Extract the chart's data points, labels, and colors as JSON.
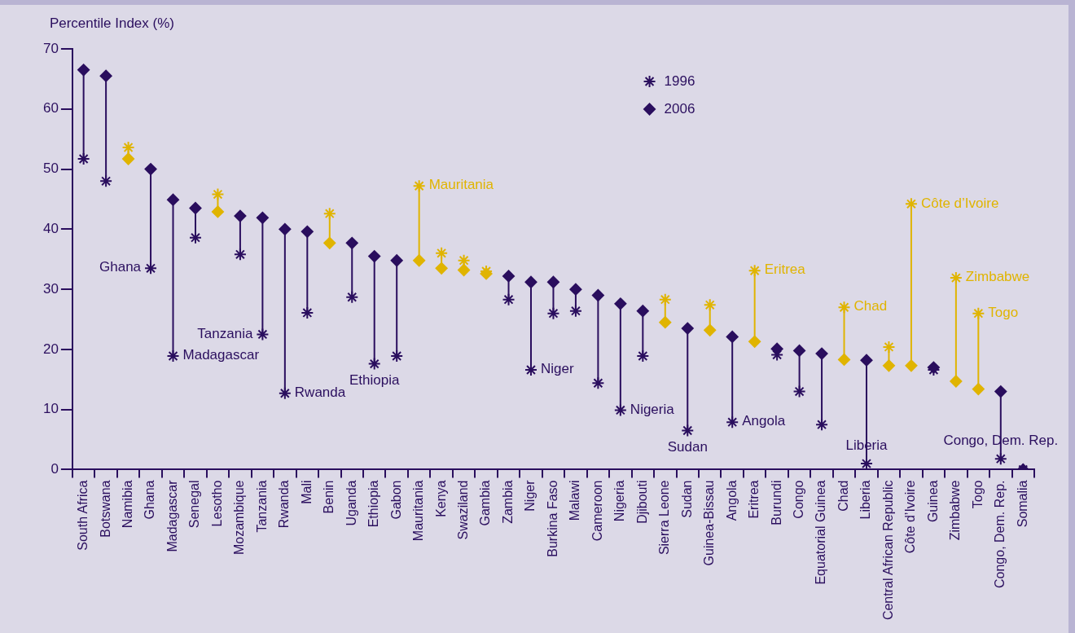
{
  "chart_data": {
    "type": "scatter",
    "ylabel": "Percentile Index (%)",
    "categories": [
      "South Africa",
      "Botswana",
      "Namibia",
      "Ghana",
      "Madagascar",
      "Senegal",
      "Lesotho",
      "Mozambique",
      "Tanzania",
      "Rwanda",
      "Mali",
      "Benin",
      "Uganda",
      "Ethiopia",
      "Gabon",
      "Mauritania",
      "Kenya",
      "Swaziland",
      "Gambia",
      "Zambia",
      "Niger",
      "Burkina Faso",
      "Malawi",
      "Cameroon",
      "Nigeria",
      "Djibouti",
      "Sierra Leone",
      "Sudan",
      "Guinea-Bissau",
      "Angola",
      "Eritrea",
      "Burundi",
      "Congo",
      "Equatorial Guinea",
      "Chad",
      "Liberia",
      "Central African Republic",
      "Côte d’Ivoire",
      "Guinea",
      "Zimbabwe",
      "Togo",
      "Congo, Dem. Rep.",
      "Somalia"
    ],
    "series": [
      {
        "name": "1996",
        "marker": "cross",
        "color": "#2a0e5e",
        "colors": [
          "#2a0e5e",
          "#2a0e5e",
          "#e0b400",
          "#2a0e5e",
          "#2a0e5e",
          "#2a0e5e",
          "#e0b400",
          "#2a0e5e",
          "#2a0e5e",
          "#2a0e5e",
          "#2a0e5e",
          "#e0b400",
          "#2a0e5e",
          "#2a0e5e",
          "#2a0e5e",
          "#e0b400",
          "#e0b400",
          "#e0b400",
          "#e0b400",
          "#2a0e5e",
          "#2a0e5e",
          "#2a0e5e",
          "#2a0e5e",
          "#2a0e5e",
          "#2a0e5e",
          "#2a0e5e",
          "#e0b400",
          "#2a0e5e",
          "#e0b400",
          "#2a0e5e",
          "#e0b400",
          "#2a0e5e",
          "#2a0e5e",
          "#2a0e5e",
          "#e0b400",
          "#2a0e5e",
          "#e0b400",
          "#e0b400",
          "#2a0e5e",
          "#e0b400",
          "#e0b400",
          "#2a0e5e",
          "#2a0e5e"
        ],
        "values": [
          51.7,
          48,
          53.6,
          33.5,
          18.9,
          38.6,
          45.8,
          35.8,
          22.5,
          12.7,
          26.1,
          42.6,
          28.7,
          17.6,
          18.9,
          47.2,
          36,
          34.8,
          33,
          28.3,
          16.6,
          26,
          26.4,
          14.4,
          9.9,
          18.9,
          28.3,
          6.5,
          27.4,
          7.9,
          33.1,
          19.1,
          13,
          7.5,
          27,
          1,
          20.4,
          44.2,
          16.6,
          31.9,
          26,
          1.8,
          0
        ]
      },
      {
        "name": "2006",
        "marker": "diamond",
        "color": "#2a0e5e",
        "colors": [
          "#2a0e5e",
          "#2a0e5e",
          "#e0b400",
          "#2a0e5e",
          "#2a0e5e",
          "#2a0e5e",
          "#e0b400",
          "#2a0e5e",
          "#2a0e5e",
          "#2a0e5e",
          "#2a0e5e",
          "#e0b400",
          "#2a0e5e",
          "#2a0e5e",
          "#2a0e5e",
          "#e0b400",
          "#e0b400",
          "#e0b400",
          "#e0b400",
          "#2a0e5e",
          "#2a0e5e",
          "#2a0e5e",
          "#2a0e5e",
          "#2a0e5e",
          "#2a0e5e",
          "#2a0e5e",
          "#e0b400",
          "#2a0e5e",
          "#e0b400",
          "#2a0e5e",
          "#e0b400",
          "#2a0e5e",
          "#2a0e5e",
          "#2a0e5e",
          "#e0b400",
          "#2a0e5e",
          "#e0b400",
          "#e0b400",
          "#2a0e5e",
          "#e0b400",
          "#e0b400",
          "#2a0e5e",
          "#2a0e5e"
        ],
        "values": [
          66.5,
          65.5,
          51.7,
          50,
          44.9,
          43.5,
          42.9,
          42.2,
          41.9,
          40,
          39.6,
          37.7,
          37.7,
          35.5,
          34.8,
          34.8,
          33.5,
          33.2,
          32.6,
          32.2,
          31.2,
          31.2,
          30,
          29,
          27.6,
          26.4,
          24.5,
          23.5,
          23.2,
          22.1,
          21.3,
          20.1,
          19.8,
          19.3,
          18.3,
          18.2,
          17.3,
          17.3,
          17,
          14.7,
          13.4,
          13,
          0
        ]
      }
    ],
    "ylim": [
      0,
      70
    ],
    "yticks": [
      0,
      10,
      20,
      30,
      40,
      50,
      60,
      70
    ],
    "grid": false,
    "legend": "top",
    "annotations": [
      {
        "text": "Ghana",
        "x": "Ghana",
        "y": 33.5
      },
      {
        "text": "Madagascar",
        "x": "Madagascar",
        "y": 18.9
      },
      {
        "text": "Tanzania",
        "x": "Tanzania",
        "y": 22.5
      },
      {
        "text": "Rwanda",
        "x": "Rwanda",
        "y": 12.7
      },
      {
        "text": "Ethiopia",
        "x": "Ethiopia",
        "y": 17.6
      },
      {
        "text": "Mauritania",
        "x": "Mauritania",
        "y": 47.2
      },
      {
        "text": "Niger",
        "x": "Niger",
        "y": 16.6
      },
      {
        "text": "Nigeria",
        "x": "Nigeria",
        "y": 9.9
      },
      {
        "text": "Sudan",
        "x": "Sudan",
        "y": 6.5
      },
      {
        "text": "Angola",
        "x": "Angola",
        "y": 7.9
      },
      {
        "text": "Eritrea",
        "x": "Eritrea",
        "y": 33.1
      },
      {
        "text": "Chad",
        "x": "Chad",
        "y": 27
      },
      {
        "text": "Liberia",
        "x": "Liberia",
        "y": 1
      },
      {
        "text": "Côte d’Ivoire",
        "x": "Côte d’Ivoire",
        "y": 44.2
      },
      {
        "text": "Zimbabwe",
        "x": "Zimbabwe",
        "y": 31.9
      },
      {
        "text": "Togo",
        "x": "Togo",
        "y": 26
      },
      {
        "text": "Congo, Dem. Rep.",
        "x": "Congo, Dem. Rep.",
        "y": 1.8
      }
    ]
  }
}
